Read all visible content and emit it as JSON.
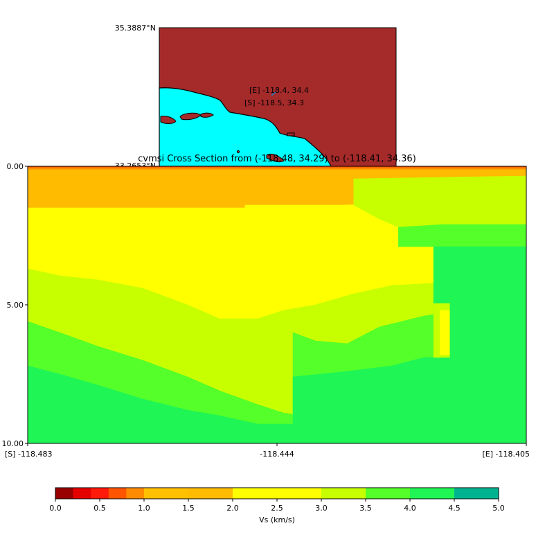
{
  "inset_map": {
    "lat_top_label": "35.3887°N",
    "lat_bottom_label": "33.2653°N",
    "end_label": "[E] -118.4, 34.4",
    "start_label": "[S] -118.5, 34.3",
    "colors": {
      "land": "#a52a2a",
      "ocean": "#00ffff",
      "marker": "#1f77b4"
    }
  },
  "chart_data": {
    "type": "heatmap",
    "title": "cvmsi Cross Section from (-118.48, 34.29) to (-118.41, 34.36)",
    "x_ticks": [
      "[S] -118.483",
      "-118.444",
      "[E] -118.405"
    ],
    "x_range": [
      -118.483,
      -118.405
    ],
    "y_ticks": [
      "0.00",
      "5.00",
      "10.00"
    ],
    "y_range": [
      0,
      10
    ],
    "y_inverted": true,
    "colorbar": {
      "label": "Vs (km/s)",
      "bounds": [
        0,
        0.2,
        0.4,
        0.6,
        0.8,
        1.0,
        1.5,
        2.0,
        2.5,
        3.0,
        3.5,
        4.0,
        4.5,
        5.0
      ],
      "colors": [
        "#990000",
        "#e50000",
        "#ff1a0a",
        "#ff5500",
        "#ff8c00",
        "#ffc000",
        "#ffbb00",
        "#ffff00",
        "#ffff00",
        "#c8ff00",
        "#55ff2a",
        "#1ff555",
        "#00b390",
        "#0050ff"
      ],
      "tick_values": [
        0.0,
        0.5,
        1.0,
        1.5,
        2.0,
        2.5,
        3.0,
        3.5,
        4.0,
        4.5,
        5.0
      ],
      "tick_labels": [
        "0.0",
        "0.5",
        "1.0",
        "1.5",
        "2.0",
        "2.5",
        "3.0",
        "3.5",
        "4.0",
        "4.5",
        "5.0"
      ]
    },
    "layers": [
      {
        "name": "very-low-vs",
        "vs": 0.6,
        "color": "#ff5500",
        "top": [
          [
            -118.483,
            0.0
          ],
          [
            -118.405,
            0.0
          ]
        ],
        "bottom": [
          [
            -118.483,
            0.05
          ],
          [
            -118.405,
            0.05
          ]
        ]
      },
      {
        "name": "low-vs",
        "vs": 0.9,
        "color": "#ff8c00",
        "top": [
          [
            -118.483,
            0.05
          ],
          [
            -118.405,
            0.05
          ]
        ],
        "bottom": [
          [
            -118.483,
            0.12
          ],
          [
            -118.474,
            0.12
          ],
          [
            -118.474,
            0.15
          ],
          [
            -118.468,
            0.15
          ],
          [
            -118.468,
            0.12
          ],
          [
            -118.405,
            0.12
          ]
        ]
      },
      {
        "name": "sediment-1.0-1.5",
        "vs": 1.2,
        "color": "#ffbb00",
        "top": [
          [
            -118.483,
            0.12
          ],
          [
            -118.405,
            0.12
          ]
        ],
        "bottom": [
          [
            -118.483,
            1.5
          ],
          [
            -118.449,
            1.5
          ],
          [
            -118.449,
            1.4
          ],
          [
            -118.434,
            1.4
          ],
          [
            -118.426,
            1.35
          ],
          [
            -118.405,
            1.35
          ]
        ]
      },
      {
        "name": "sediment-1.5-2.5",
        "vs": 2.0,
        "color": "#ffff00",
        "top": [
          [
            -118.483,
            1.5
          ],
          [
            -118.449,
            1.5
          ],
          [
            -118.449,
            1.4
          ],
          [
            -118.434,
            1.4
          ],
          [
            -118.426,
            1.35
          ],
          [
            -118.405,
            1.35
          ]
        ],
        "bottom": [
          [
            -118.483,
            3.7
          ],
          [
            -118.478,
            3.95
          ],
          [
            -118.472,
            4.1
          ],
          [
            -118.465,
            4.4
          ],
          [
            -118.458,
            5.0
          ],
          [
            -118.453,
            5.5
          ],
          [
            -118.447,
            5.5
          ],
          [
            -118.443,
            5.2
          ],
          [
            -118.438,
            5.0
          ],
          [
            -118.432,
            4.6
          ],
          [
            -118.426,
            4.3
          ],
          [
            -118.418,
            4.2
          ],
          [
            -118.41,
            4.2
          ],
          [
            -118.405,
            4.2
          ]
        ]
      },
      {
        "name": "rock-2.5-3.0",
        "vs": 2.8,
        "color": "#c8ff00",
        "top": [
          [
            -118.483,
            3.7
          ],
          [
            -118.478,
            3.95
          ],
          [
            -118.472,
            4.1
          ],
          [
            -118.465,
            4.4
          ],
          [
            -118.458,
            5.0
          ],
          [
            -118.453,
            5.5
          ],
          [
            -118.447,
            5.5
          ],
          [
            -118.443,
            5.2
          ],
          [
            -118.438,
            5.0
          ],
          [
            -118.432,
            4.6
          ],
          [
            -118.426,
            4.3
          ],
          [
            -118.418,
            4.2
          ],
          [
            -118.41,
            4.2
          ],
          [
            -118.405,
            4.2
          ]
        ],
        "bottom": [
          [
            -118.483,
            5.6
          ],
          [
            -118.478,
            6.0
          ],
          [
            -118.472,
            6.5
          ],
          [
            -118.465,
            7.0
          ],
          [
            -118.458,
            7.6
          ],
          [
            -118.453,
            8.1
          ],
          [
            -118.447,
            8.6
          ],
          [
            -118.443,
            8.9
          ],
          [
            -118.4415,
            8.95
          ],
          [
            -118.4415,
            6.0
          ],
          [
            -118.438,
            6.3
          ],
          [
            -118.433,
            6.4
          ],
          [
            -118.428,
            5.8
          ],
          [
            -118.421,
            5.4
          ],
          [
            -118.418,
            5.3
          ],
          [
            -118.405,
            5.3
          ]
        ]
      },
      {
        "name": "rock-3.0-3.5",
        "vs": 3.2,
        "color": "#55ff2a",
        "top": [
          [
            -118.483,
            5.6
          ],
          [
            -118.478,
            6.0
          ],
          [
            -118.472,
            6.5
          ],
          [
            -118.465,
            7.0
          ],
          [
            -118.458,
            7.6
          ],
          [
            -118.453,
            8.1
          ],
          [
            -118.447,
            8.6
          ],
          [
            -118.443,
            8.9
          ],
          [
            -118.4415,
            8.95
          ],
          [
            -118.4415,
            6.0
          ],
          [
            -118.438,
            6.3
          ],
          [
            -118.433,
            6.4
          ],
          [
            -118.428,
            5.8
          ],
          [
            -118.421,
            5.4
          ],
          [
            -118.418,
            5.3
          ],
          [
            -118.405,
            5.3
          ]
        ],
        "bottom": [
          [
            -118.483,
            7.2
          ],
          [
            -118.478,
            7.5
          ],
          [
            -118.472,
            7.9
          ],
          [
            -118.465,
            8.4
          ],
          [
            -118.458,
            8.8
          ],
          [
            -118.453,
            9.0
          ],
          [
            -118.447,
            9.3
          ],
          [
            -118.4415,
            9.3
          ],
          [
            -118.4415,
            7.6
          ],
          [
            -118.433,
            7.4
          ],
          [
            -118.426,
            7.2
          ],
          [
            -118.421,
            6.9
          ],
          [
            -118.405,
            6.9
          ]
        ]
      },
      {
        "name": "basement",
        "vs": 3.7,
        "color": "#1ff555",
        "top": [
          [
            -118.483,
            7.2
          ],
          [
            -118.478,
            7.5
          ],
          [
            -118.472,
            7.9
          ],
          [
            -118.465,
            8.4
          ],
          [
            -118.458,
            8.8
          ],
          [
            -118.453,
            9.0
          ],
          [
            -118.447,
            9.3
          ],
          [
            -118.4415,
            9.3
          ],
          [
            -118.4415,
            7.6
          ],
          [
            -118.433,
            7.4
          ],
          [
            -118.426,
            7.2
          ],
          [
            -118.421,
            6.9
          ],
          [
            -118.405,
            6.9
          ]
        ],
        "bottom": [
          [
            -118.483,
            10.0
          ],
          [
            -118.405,
            10.0
          ]
        ]
      },
      {
        "name": "northeast-3.0-3.5",
        "vs": 3.2,
        "color": "#55ff2a",
        "top": [
          [
            -118.425,
            2.2
          ],
          [
            -118.418,
            2.1
          ],
          [
            -118.405,
            2.1
          ]
        ],
        "bottom": [
          [
            -118.425,
            2.2
          ],
          [
            -118.405,
            2.2
          ]
        ]
      },
      {
        "name": "northeast-upper-2.5-3.0",
        "vs": 2.8,
        "color": "#c8ff00",
        "top": [
          [
            -118.432,
            0.45
          ],
          [
            -118.405,
            0.35
          ]
        ],
        "bottom": [
          [
            -118.432,
            1.4
          ],
          [
            -118.428,
            1.9
          ],
          [
            -118.425,
            2.2
          ],
          [
            -118.418,
            2.1
          ],
          [
            -118.405,
            2.1
          ]
        ]
      },
      {
        "name": "northeast-3.0-3.5-block",
        "vs": 3.2,
        "color": "#55ff2a",
        "top": [
          [
            -118.425,
            2.2
          ],
          [
            -118.418,
            2.1
          ],
          [
            -118.405,
            2.1
          ]
        ],
        "bottom": [
          [
            -118.425,
            2.9
          ],
          [
            -118.405,
            2.9
          ]
        ]
      },
      {
        "name": "northeast-3.5-4.0",
        "vs": 3.7,
        "color": "#1ff555",
        "top": [
          [
            -118.4195,
            2.9
          ],
          [
            -118.405,
            2.9
          ]
        ],
        "bottom": [
          [
            -118.4195,
            6.9
          ],
          [
            -118.405,
            6.9
          ]
        ]
      },
      {
        "name": "fault-sliver",
        "vs": 2.8,
        "color": "#c8ff00",
        "top": [
          [
            -118.4195,
            4.95
          ],
          [
            -118.417,
            4.95
          ]
        ],
        "bottom": [
          [
            -118.4195,
            6.9
          ],
          [
            -118.417,
            6.9
          ]
        ]
      },
      {
        "name": "fault-sliver-core",
        "vs": 2.0,
        "color": "#ffff00",
        "top": [
          [
            -118.4185,
            5.2
          ],
          [
            -118.417,
            5.2
          ]
        ],
        "bottom": [
          [
            -118.4185,
            6.8
          ],
          [
            -118.417,
            6.8
          ]
        ]
      },
      {
        "name": "mid-wedge",
        "vs": 2.0,
        "color": "#ffff00",
        "top": [
          [
            -118.4255,
            3.4
          ],
          [
            -118.421,
            3.4
          ]
        ],
        "bottom": [
          [
            -118.4255,
            4.2
          ],
          [
            -118.421,
            4.2
          ]
        ]
      }
    ]
  }
}
